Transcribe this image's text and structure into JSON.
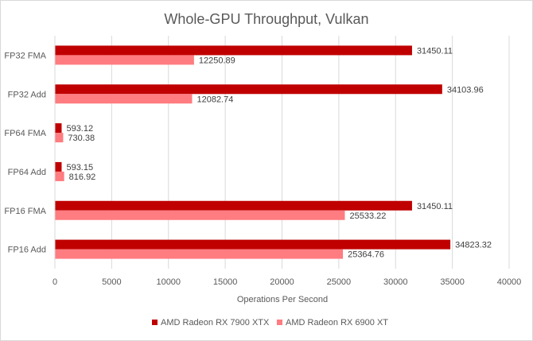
{
  "chart_data": {
    "type": "bar",
    "orientation": "horizontal",
    "title": "Whole-GPU Throughput, Vulkan",
    "xlabel": "Operations Per Second",
    "ylabel": "",
    "categories": [
      "FP32 FMA",
      "FP32 Add",
      "FP64 FMA",
      "FP64 Add",
      "FP16 FMA",
      "FP16 Add"
    ],
    "series": [
      {
        "name": "AMD Radeon RX 7900 XTX",
        "color": "#c00000",
        "values": [
          31450.11,
          34103.96,
          593.12,
          593.15,
          31450.11,
          34823.32
        ],
        "labels": [
          "31450.11",
          "34103.96",
          "593.12",
          "593.15",
          "31450.11",
          "34823.32"
        ]
      },
      {
        "name": "AMD Radeon RX 6900 XT",
        "color": "#ff7c80",
        "values": [
          12250.89,
          12082.74,
          730.38,
          816.92,
          25533.22,
          25364.76
        ],
        "labels": [
          "12250.89",
          "12082.74",
          "730.38",
          "816.92",
          "25533.22",
          "25364.76"
        ]
      }
    ],
    "xlim": [
      0,
      40000
    ],
    "xticks": [
      0,
      5000,
      10000,
      15000,
      20000,
      25000,
      30000,
      35000,
      40000
    ],
    "xtick_labels": [
      "0",
      "5000",
      "10000",
      "15000",
      "20000",
      "25000",
      "30000",
      "35000",
      "40000"
    ],
    "grid": true,
    "legend_position": "bottom"
  }
}
